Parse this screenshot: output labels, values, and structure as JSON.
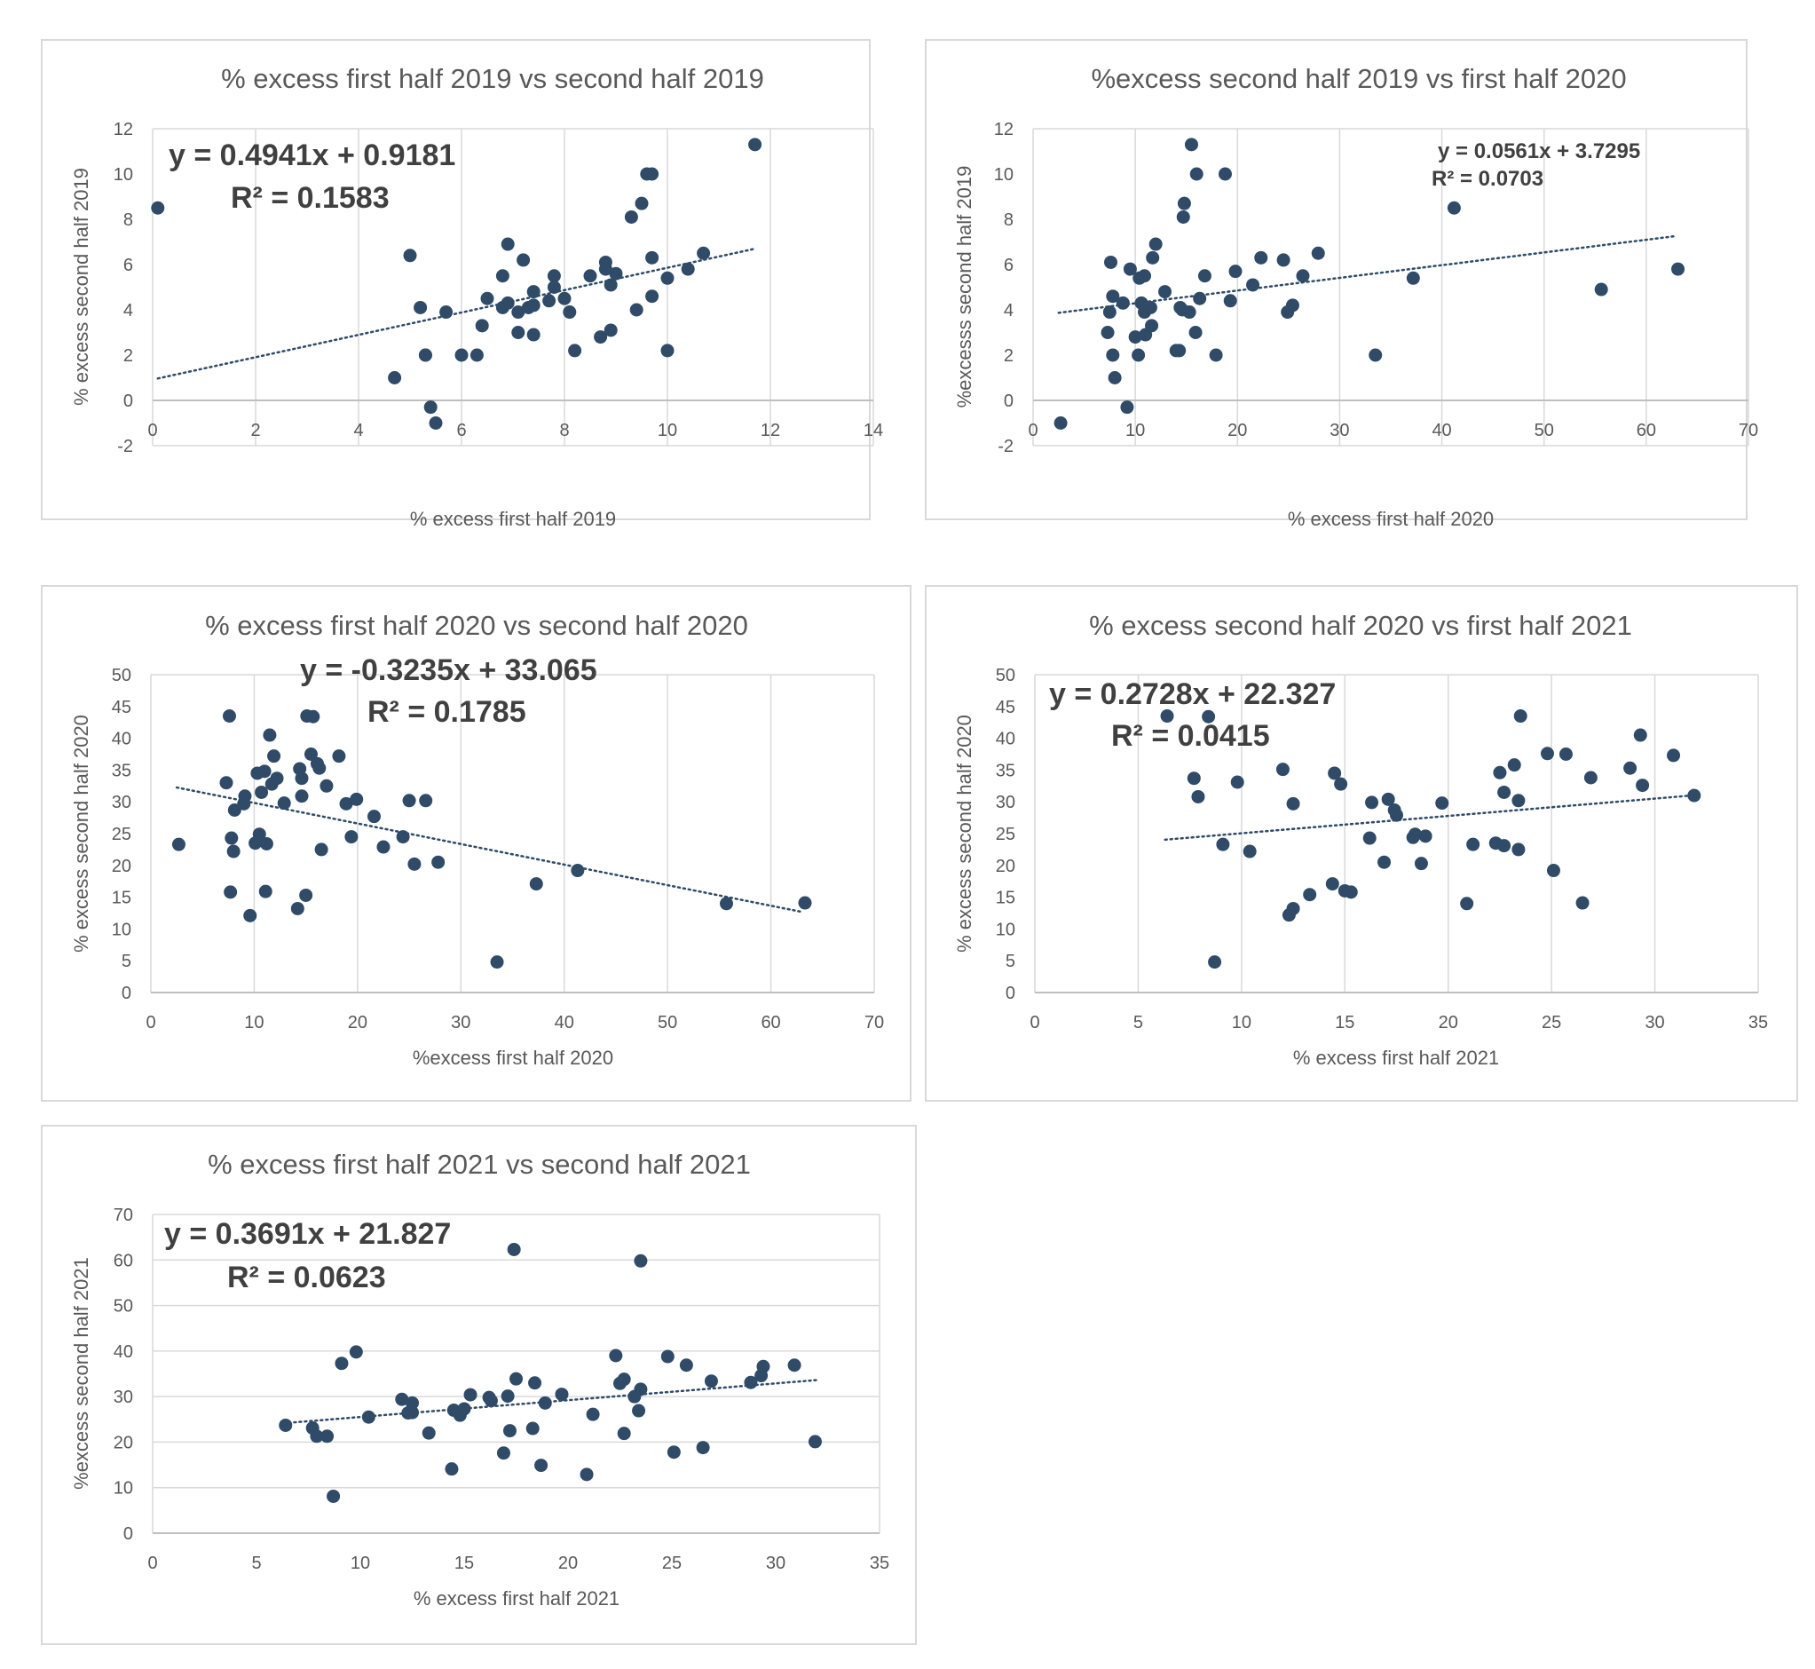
{
  "style": {
    "marker_color": "#2f4b68",
    "trend_color": "#2f4b68",
    "grid_color": "#d9d9d9",
    "frame_color": "#d9d9d9",
    "text_color": "#595959"
  },
  "chart_data": [
    {
      "type": "scatter",
      "title": "% excess first half 2019 vs second half 2019",
      "xlabel": "% excess first half 2019",
      "ylabel": "% excess second half 2019",
      "xlim": [
        0,
        14
      ],
      "ylim": [
        -2,
        12
      ],
      "xticks": [
        0,
        2,
        4,
        6,
        8,
        10,
        12,
        14
      ],
      "yticks": [
        -2,
        0,
        2,
        4,
        6,
        8,
        10,
        12
      ],
      "grid": "vertical",
      "trendline": {
        "type": "linear",
        "slope": 0.4941,
        "intercept": 0.9181,
        "x_range": [
          0.1,
          11.7
        ]
      },
      "equation": "y = 0.4941x + 0.9181",
      "r2_text": "R² = 0.1583",
      "points": [
        [
          0.1,
          8.5
        ],
        [
          4.7,
          1.0
        ],
        [
          5.0,
          6.4
        ],
        [
          5.2,
          4.1
        ],
        [
          5.3,
          2.0
        ],
        [
          5.3,
          2.0
        ],
        [
          5.4,
          -0.3
        ],
        [
          5.5,
          -1.0
        ],
        [
          5.7,
          3.9
        ],
        [
          6.0,
          2.0
        ],
        [
          6.3,
          2.0
        ],
        [
          6.4,
          3.3
        ],
        [
          6.5,
          4.5
        ],
        [
          6.8,
          5.5
        ],
        [
          6.8,
          4.1
        ],
        [
          6.9,
          4.3
        ],
        [
          6.9,
          6.9
        ],
        [
          7.1,
          3.0
        ],
        [
          7.1,
          3.9
        ],
        [
          7.2,
          6.2
        ],
        [
          7.3,
          4.1
        ],
        [
          7.4,
          4.2
        ],
        [
          7.4,
          4.8
        ],
        [
          7.4,
          2.9
        ],
        [
          7.7,
          4.4
        ],
        [
          7.8,
          5.5
        ],
        [
          7.8,
          5.0
        ],
        [
          8.0,
          4.5
        ],
        [
          8.1,
          3.9
        ],
        [
          8.2,
          2.2
        ],
        [
          8.5,
          5.5
        ],
        [
          8.7,
          2.8
        ],
        [
          8.8,
          6.1
        ],
        [
          8.8,
          5.8
        ],
        [
          8.9,
          5.1
        ],
        [
          8.9,
          3.1
        ],
        [
          9.0,
          5.6
        ],
        [
          9.3,
          8.1
        ],
        [
          9.4,
          4.0
        ],
        [
          9.5,
          8.7
        ],
        [
          9.6,
          10.0
        ],
        [
          9.7,
          10.0
        ],
        [
          9.7,
          6.3
        ],
        [
          9.7,
          4.6
        ],
        [
          10.0,
          5.4
        ],
        [
          10.0,
          2.2
        ],
        [
          10.4,
          5.8
        ],
        [
          10.7,
          6.5
        ],
        [
          11.7,
          11.3
        ]
      ]
    },
    {
      "type": "scatter",
      "title": "%excess second half 2019 vs first half 2020",
      "xlabel": "% excess first half 2020",
      "ylabel": "%excesss second half 2019",
      "xlim": [
        0,
        70
      ],
      "ylim": [
        -2,
        12
      ],
      "xticks": [
        0,
        10,
        20,
        30,
        40,
        50,
        60,
        70
      ],
      "yticks": [
        -2,
        0,
        2,
        4,
        6,
        8,
        10,
        12
      ],
      "grid": "vertical",
      "trendline": {
        "type": "linear",
        "slope": 0.0561,
        "intercept": 3.7295,
        "x_range": [
          2.5,
          63
        ]
      },
      "equation": "y = 0.0561x + 3.7295",
      "r2_text": "R² = 0.0703",
      "points": [
        [
          2.7,
          -1.0
        ],
        [
          7.3,
          3.0
        ],
        [
          7.5,
          3.9
        ],
        [
          7.6,
          6.1
        ],
        [
          7.8,
          4.6
        ],
        [
          7.8,
          2.0
        ],
        [
          8.0,
          1.0
        ],
        [
          8.8,
          4.3
        ],
        [
          9.2,
          -0.3
        ],
        [
          9.5,
          5.8
        ],
        [
          10.0,
          2.8
        ],
        [
          10.3,
          2.0
        ],
        [
          10.4,
          5.4
        ],
        [
          10.6,
          4.3
        ],
        [
          10.9,
          5.5
        ],
        [
          10.9,
          3.9
        ],
        [
          11.0,
          2.9
        ],
        [
          11.5,
          4.1
        ],
        [
          11.6,
          3.3
        ],
        [
          11.7,
          6.3
        ],
        [
          12.0,
          6.9
        ],
        [
          12.9,
          4.8
        ],
        [
          14.0,
          2.2
        ],
        [
          14.3,
          2.2
        ],
        [
          14.4,
          4.1
        ],
        [
          14.6,
          4.0
        ],
        [
          14.7,
          8.1
        ],
        [
          14.8,
          8.7
        ],
        [
          15.3,
          3.9
        ],
        [
          15.5,
          11.3
        ],
        [
          15.9,
          3.0
        ],
        [
          16.0,
          10.0
        ],
        [
          16.3,
          4.5
        ],
        [
          16.8,
          5.5
        ],
        [
          17.9,
          2.0
        ],
        [
          18.8,
          10.0
        ],
        [
          19.3,
          4.4
        ],
        [
          19.8,
          5.7
        ],
        [
          21.5,
          5.1
        ],
        [
          22.3,
          6.3
        ],
        [
          24.5,
          6.2
        ],
        [
          24.9,
          3.9
        ],
        [
          25.4,
          4.2
        ],
        [
          26.4,
          5.5
        ],
        [
          27.9,
          6.5
        ],
        [
          33.5,
          2.0
        ],
        [
          37.2,
          5.4
        ],
        [
          41.2,
          8.5
        ],
        [
          55.6,
          4.9
        ],
        [
          63.1,
          5.8
        ]
      ]
    },
    {
      "type": "scatter",
      "title": "% excess first half 2020 vs second half 2020",
      "xlabel": "%excess first half 2020",
      "ylabel": "% excess second half 2020",
      "xlim": [
        0,
        70
      ],
      "ylim": [
        0,
        50
      ],
      "xticks": [
        0,
        10,
        20,
        30,
        40,
        50,
        60,
        70
      ],
      "yticks": [
        0,
        5,
        10,
        15,
        20,
        25,
        30,
        35,
        40,
        45,
        50
      ],
      "grid": "vertical",
      "trendline": {
        "type": "linear",
        "slope": -0.3235,
        "intercept": 33.065,
        "x_range": [
          2.5,
          63
        ]
      },
      "equation": "y = -0.3235x + 33.065",
      "r2_text": "R² = 0.1785",
      "points": [
        [
          2.7,
          23.3
        ],
        [
          7.3,
          33.0
        ],
        [
          7.6,
          43.5
        ],
        [
          7.7,
          15.8
        ],
        [
          7.8,
          24.3
        ],
        [
          8.0,
          22.2
        ],
        [
          8.1,
          28.7
        ],
        [
          9.0,
          29.7
        ],
        [
          9.1,
          30.9
        ],
        [
          9.6,
          12.1
        ],
        [
          10.1,
          23.5
        ],
        [
          10.3,
          34.5
        ],
        [
          10.5,
          24.9
        ],
        [
          10.7,
          31.5
        ],
        [
          11.0,
          34.8
        ],
        [
          11.1,
          15.9
        ],
        [
          11.2,
          23.4
        ],
        [
          11.5,
          40.5
        ],
        [
          11.7,
          32.8
        ],
        [
          11.9,
          37.2
        ],
        [
          12.2,
          33.7
        ],
        [
          12.9,
          29.8
        ],
        [
          14.2,
          13.2
        ],
        [
          14.4,
          35.2
        ],
        [
          14.6,
          30.9
        ],
        [
          14.6,
          33.7
        ],
        [
          15.0,
          15.3
        ],
        [
          15.1,
          43.5
        ],
        [
          15.5,
          37.5
        ],
        [
          15.7,
          43.4
        ],
        [
          16.1,
          36.0
        ],
        [
          16.3,
          35.3
        ],
        [
          16.5,
          22.5
        ],
        [
          17.0,
          32.5
        ],
        [
          18.2,
          37.2
        ],
        [
          18.9,
          29.7
        ],
        [
          19.4,
          24.5
        ],
        [
          19.9,
          30.4
        ],
        [
          21.6,
          27.7
        ],
        [
          22.5,
          22.9
        ],
        [
          24.4,
          24.5
        ],
        [
          25.0,
          30.2
        ],
        [
          25.5,
          20.2
        ],
        [
          26.6,
          30.2
        ],
        [
          27.8,
          20.5
        ],
        [
          33.5,
          4.8
        ],
        [
          37.3,
          17.1
        ],
        [
          41.3,
          19.2
        ],
        [
          55.7,
          14.0
        ],
        [
          63.3,
          14.1
        ]
      ]
    },
    {
      "type": "scatter",
      "title": "% excess second half 2020 vs first half 2021",
      "xlabel": "% excess first half 2021",
      "ylabel": "% excess second half 2020",
      "xlim": [
        0,
        35
      ],
      "ylim": [
        0,
        50
      ],
      "xticks": [
        0,
        5,
        10,
        15,
        20,
        25,
        30,
        35
      ],
      "yticks": [
        0,
        5,
        10,
        15,
        20,
        25,
        30,
        35,
        40,
        45,
        50
      ],
      "grid": "vertical",
      "trendline": {
        "type": "linear",
        "slope": 0.2728,
        "intercept": 22.327,
        "x_range": [
          6.3,
          32
        ]
      },
      "equation": "y = 0.2728x + 22.327",
      "r2_text": "R² = 0.0415",
      "points": [
        [
          6.4,
          43.5
        ],
        [
          7.7,
          33.7
        ],
        [
          7.9,
          30.8
        ],
        [
          8.4,
          43.4
        ],
        [
          8.7,
          4.8
        ],
        [
          9.1,
          23.3
        ],
        [
          9.8,
          33.1
        ],
        [
          10.4,
          22.2
        ],
        [
          12.0,
          35.1
        ],
        [
          12.3,
          12.2
        ],
        [
          12.5,
          29.7
        ],
        [
          12.5,
          13.2
        ],
        [
          13.3,
          15.4
        ],
        [
          14.4,
          17.1
        ],
        [
          14.5,
          34.5
        ],
        [
          14.8,
          32.8
        ],
        [
          15.0,
          16.0
        ],
        [
          15.3,
          15.8
        ],
        [
          16.2,
          24.3
        ],
        [
          16.3,
          29.9
        ],
        [
          16.9,
          20.5
        ],
        [
          17.1,
          30.4
        ],
        [
          17.4,
          28.7
        ],
        [
          17.5,
          27.9
        ],
        [
          18.3,
          24.4
        ],
        [
          18.4,
          24.9
        ],
        [
          18.7,
          20.3
        ],
        [
          18.9,
          24.6
        ],
        [
          19.7,
          29.8
        ],
        [
          20.9,
          14.0
        ],
        [
          21.2,
          23.3
        ],
        [
          22.3,
          23.5
        ],
        [
          22.5,
          34.6
        ],
        [
          22.7,
          23.1
        ],
        [
          22.7,
          31.5
        ],
        [
          23.2,
          35.8
        ],
        [
          23.4,
          30.2
        ],
        [
          23.4,
          22.5
        ],
        [
          23.5,
          43.5
        ],
        [
          24.8,
          37.6
        ],
        [
          25.1,
          19.2
        ],
        [
          25.7,
          37.5
        ],
        [
          26.5,
          14.1
        ],
        [
          26.9,
          33.8
        ],
        [
          28.8,
          35.3
        ],
        [
          29.3,
          40.5
        ],
        [
          29.4,
          32.6
        ],
        [
          30.9,
          37.3
        ],
        [
          31.9,
          31.0
        ]
      ]
    },
    {
      "type": "scatter",
      "title": "% excess first half 2021 vs second half 2021",
      "xlabel": "% excess first half 2021",
      "ylabel": "%excess second half 2021",
      "xlim": [
        0,
        35
      ],
      "ylim": [
        0,
        70
      ],
      "xticks": [
        0,
        5,
        10,
        15,
        20,
        25,
        30,
        35
      ],
      "yticks": [
        0,
        10,
        20,
        30,
        40,
        50,
        60,
        70
      ],
      "grid": "horizontal",
      "trendline": {
        "type": "linear",
        "slope": 0.3691,
        "intercept": 21.827,
        "x_range": [
          6.3,
          32
        ]
      },
      "equation": "y = 0.3691x + 21.827",
      "r2_text": "R² = 0.0623",
      "points": [
        [
          6.4,
          23.7
        ],
        [
          7.7,
          23.1
        ],
        [
          7.9,
          21.3
        ],
        [
          8.4,
          21.3
        ],
        [
          8.7,
          8.1
        ],
        [
          9.1,
          37.3
        ],
        [
          9.8,
          39.8
        ],
        [
          10.4,
          25.5
        ],
        [
          12.0,
          29.4
        ],
        [
          12.3,
          26.4
        ],
        [
          12.5,
          28.6
        ],
        [
          12.5,
          26.5
        ],
        [
          13.3,
          22.0
        ],
        [
          14.4,
          14.1
        ],
        [
          14.5,
          27.0
        ],
        [
          14.8,
          25.9
        ],
        [
          15.0,
          27.3
        ],
        [
          15.3,
          30.4
        ],
        [
          16.2,
          29.8
        ],
        [
          16.3,
          29.1
        ],
        [
          16.9,
          17.6
        ],
        [
          17.1,
          30.1
        ],
        [
          17.2,
          22.5
        ],
        [
          17.4,
          62.3
        ],
        [
          17.5,
          33.9
        ],
        [
          18.3,
          23.0
        ],
        [
          18.4,
          33.0
        ],
        [
          18.7,
          14.9
        ],
        [
          18.9,
          28.6
        ],
        [
          19.7,
          30.5
        ],
        [
          20.9,
          12.9
        ],
        [
          21.2,
          26.1
        ],
        [
          22.3,
          39.0
        ],
        [
          22.5,
          32.9
        ],
        [
          22.7,
          21.9
        ],
        [
          22.7,
          33.8
        ],
        [
          23.2,
          30.0
        ],
        [
          23.4,
          26.9
        ],
        [
          23.5,
          59.8
        ],
        [
          23.5,
          31.6
        ],
        [
          24.8,
          38.8
        ],
        [
          25.1,
          17.8
        ],
        [
          25.7,
          36.9
        ],
        [
          26.5,
          18.8
        ],
        [
          26.9,
          33.4
        ],
        [
          28.8,
          33.1
        ],
        [
          29.3,
          34.6
        ],
        [
          29.4,
          36.6
        ],
        [
          30.9,
          36.9
        ],
        [
          31.9,
          20.1
        ]
      ]
    }
  ]
}
